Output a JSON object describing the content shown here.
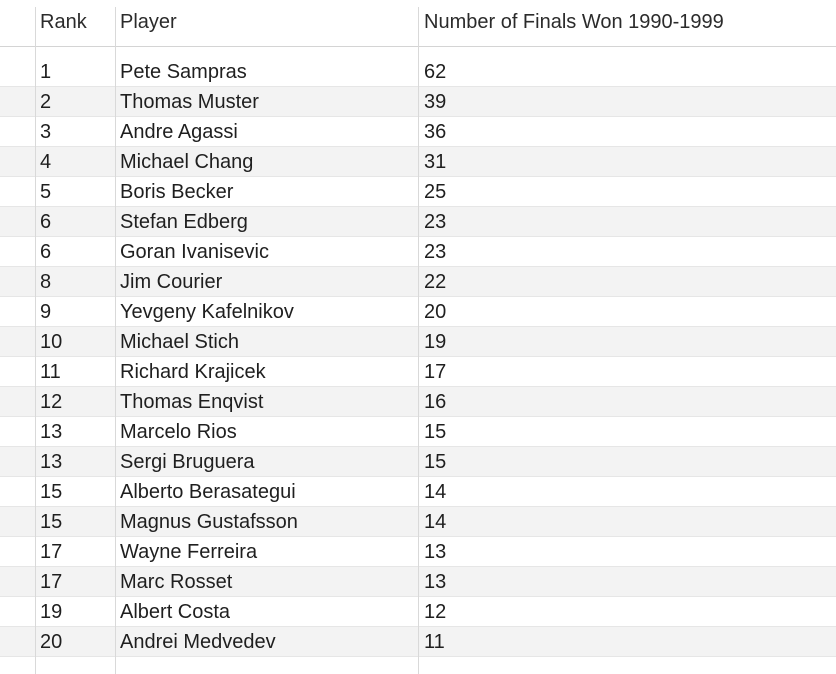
{
  "table": {
    "columns": [
      "Rank",
      "Player",
      "Number of Finals Won 1990-1999"
    ],
    "rows": [
      {
        "rank": "1",
        "player": "Pete Sampras",
        "finals": "62"
      },
      {
        "rank": "2",
        "player": "Thomas Muster",
        "finals": "39"
      },
      {
        "rank": "3",
        "player": "Andre Agassi",
        "finals": "36"
      },
      {
        "rank": "4",
        "player": "Michael Chang",
        "finals": "31"
      },
      {
        "rank": "5",
        "player": "Boris Becker",
        "finals": "25"
      },
      {
        "rank": "6",
        "player": "Stefan Edberg",
        "finals": "23"
      },
      {
        "rank": "6",
        "player": "Goran Ivanisevic",
        "finals": "23"
      },
      {
        "rank": "8",
        "player": "Jim Courier",
        "finals": "22"
      },
      {
        "rank": "9",
        "player": "Yevgeny Kafelnikov",
        "finals": "20"
      },
      {
        "rank": "10",
        "player": "Michael Stich",
        "finals": "19"
      },
      {
        "rank": "11",
        "player": "Richard Krajicek",
        "finals": "17"
      },
      {
        "rank": "12",
        "player": "Thomas Enqvist",
        "finals": "16"
      },
      {
        "rank": "13",
        "player": "Marcelo Rios",
        "finals": "15"
      },
      {
        "rank": "13",
        "player": "Sergi Bruguera",
        "finals": "15"
      },
      {
        "rank": "15",
        "player": "Alberto Berasategui",
        "finals": "14"
      },
      {
        "rank": "15",
        "player": "Magnus Gustafsson",
        "finals": "14"
      },
      {
        "rank": "17",
        "player": "Wayne Ferreira",
        "finals": "13"
      },
      {
        "rank": "17",
        "player": "Marc Rosset",
        "finals": "13"
      },
      {
        "rank": "19",
        "player": "Albert Costa",
        "finals": "12"
      },
      {
        "rank": "20",
        "player": "Andrei Medvedev",
        "finals": "11"
      }
    ]
  }
}
